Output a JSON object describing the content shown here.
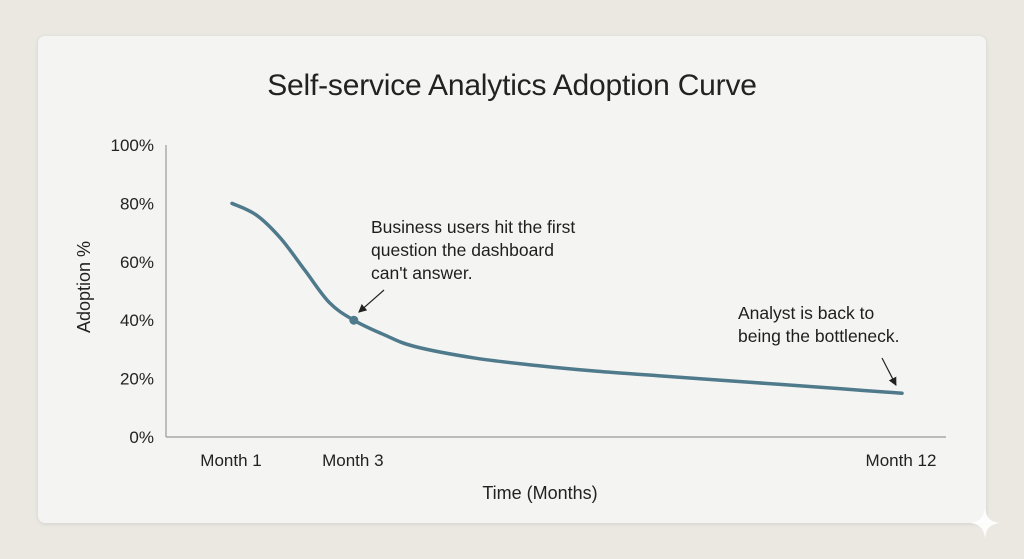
{
  "chart_data": {
    "type": "line",
    "title": "Self-service Analytics Adoption Curve",
    "xlabel": "Time (Months)",
    "ylabel": "Adoption %",
    "y_ticks": [
      "0%",
      "20%",
      "40%",
      "60%",
      "80%",
      "100%"
    ],
    "ylim": [
      0,
      100
    ],
    "xlim": [
      1,
      12
    ],
    "x_tick_labels": [
      {
        "x": 1,
        "label": "Month 1"
      },
      {
        "x": 3,
        "label": "Month 3"
      },
      {
        "x": 12,
        "label": "Month 12"
      }
    ],
    "grid": false,
    "series": [
      {
        "color": "#4f7a8c",
        "points": [
          {
            "x": 1,
            "y": 80
          },
          {
            "x": 1.4,
            "y": 76
          },
          {
            "x": 1.8,
            "y": 68
          },
          {
            "x": 2.2,
            "y": 57
          },
          {
            "x": 2.6,
            "y": 46
          },
          {
            "x": 3,
            "y": 40
          },
          {
            "x": 3.5,
            "y": 35
          },
          {
            "x": 4,
            "y": 31
          },
          {
            "x": 5,
            "y": 27
          },
          {
            "x": 6,
            "y": 24.5
          },
          {
            "x": 7,
            "y": 22.5
          },
          {
            "x": 8,
            "y": 21
          },
          {
            "x": 9,
            "y": 19.5
          },
          {
            "x": 10,
            "y": 18
          },
          {
            "x": 11,
            "y": 16.5
          },
          {
            "x": 12,
            "y": 15
          }
        ]
      }
    ],
    "annotations": [
      {
        "x": 3,
        "y": 40,
        "lines": [
          "Business users hit the first",
          "question the dashboard",
          "can't answer."
        ]
      },
      {
        "x": 12,
        "y": 15,
        "lines": [
          "Analyst is back to",
          "being the bottleneck."
        ]
      }
    ]
  }
}
